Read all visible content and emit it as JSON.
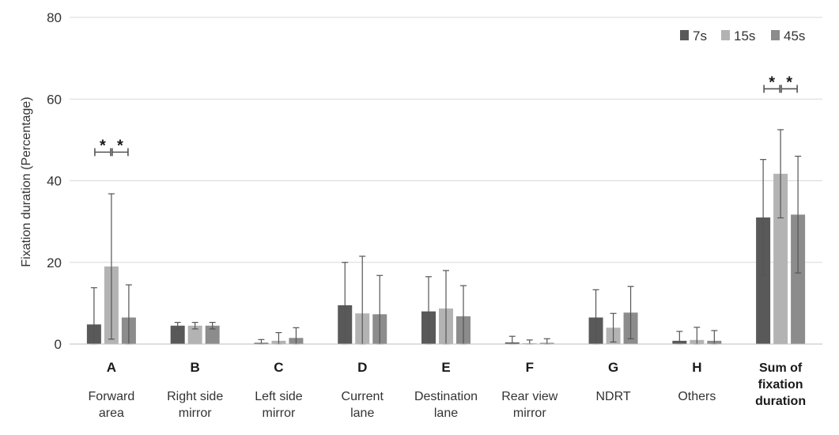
{
  "chart_data": {
    "type": "bar",
    "title": "",
    "xlabel": "",
    "ylabel": "Fixation duration (Percentage)",
    "ylim": [
      0,
      80
    ],
    "yticks": [
      "0",
      "20",
      "40",
      "60",
      "80"
    ],
    "grid": true,
    "legend_position": "top-right",
    "categories": [
      {
        "letter": "A",
        "desc": [
          "Forward",
          "area"
        ],
        "bold": false
      },
      {
        "letter": "B",
        "desc": [
          "Right side",
          "mirror"
        ],
        "bold": false
      },
      {
        "letter": "C",
        "desc": [
          "Left side",
          "mirror"
        ],
        "bold": false
      },
      {
        "letter": "D",
        "desc": [
          "Current",
          "lane"
        ],
        "bold": false
      },
      {
        "letter": "E",
        "desc": [
          "Destination",
          "lane"
        ],
        "bold": false
      },
      {
        "letter": "F",
        "desc": [
          "Rear view",
          "mirror"
        ],
        "bold": false
      },
      {
        "letter": "G",
        "desc": [
          "NDRT"
        ],
        "bold": false
      },
      {
        "letter": "H",
        "desc": [
          "Others"
        ],
        "bold": false
      },
      {
        "letter": "",
        "desc": [
          "Sum of",
          "fixation",
          "duration"
        ],
        "bold": true
      }
    ],
    "series": [
      {
        "name": "7s",
        "color": "#595959",
        "values": [
          4.8,
          4.5,
          0.3,
          9.5,
          8.0,
          0.4,
          6.5,
          0.8,
          31.0
        ],
        "errors": [
          9.0,
          0.8,
          0.8,
          10.5,
          8.5,
          1.5,
          6.8,
          2.3,
          14.2
        ]
      },
      {
        "name": "15s",
        "color": "#b3b3b3",
        "values": [
          19.0,
          4.5,
          0.8,
          7.5,
          8.7,
          0.2,
          4.0,
          1.0,
          41.7
        ],
        "errors": [
          17.8,
          0.8,
          2.0,
          14.0,
          9.3,
          0.8,
          3.5,
          3.1,
          10.8
        ]
      },
      {
        "name": "45s",
        "color": "#8c8c8c",
        "values": [
          6.5,
          4.5,
          1.5,
          7.3,
          6.8,
          0.3,
          7.7,
          0.8,
          31.7
        ],
        "errors": [
          8.0,
          0.8,
          2.5,
          9.5,
          7.5,
          1.0,
          6.4,
          2.5,
          14.3
        ]
      }
    ],
    "significance": [
      {
        "category": 0,
        "pairs": [
          [
            0,
            1
          ],
          [
            1,
            2
          ]
        ],
        "level": 47,
        "label": "*"
      },
      {
        "category": 8,
        "pairs": [
          [
            0,
            1
          ],
          [
            1,
            2
          ]
        ],
        "level": 62.5,
        "label": "*"
      }
    ]
  }
}
